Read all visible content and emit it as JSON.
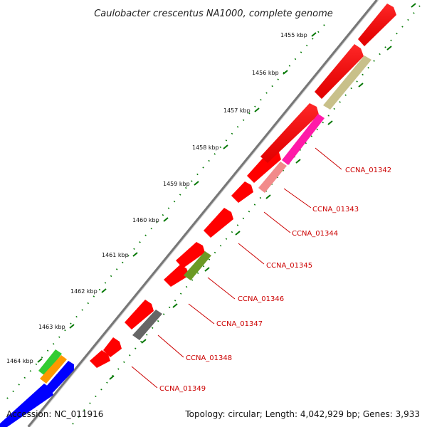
{
  "title": "Caulobacter crescentus NA1000, complete genome",
  "kbp_labels": [
    "1455 kbp",
    "1456 kbp",
    "1457 kbp",
    "1458 kbp",
    "1459 kbp",
    "1460 kbp",
    "1461 kbp",
    "1462 kbp",
    "1463 kbp",
    "1464 kbp"
  ],
  "gene_labels": [
    "CCNA_01342",
    "CCNA_01343",
    "CCNA_01344",
    "CCNA_01345",
    "CCNA_01346",
    "CCNA_01347",
    "CCNA_01348",
    "CCNA_01349"
  ],
  "footer": {
    "accession": "Accession: NC_011916",
    "topology": "Topology: circular; Length: 4,042,929 bp; Genes: 3,933"
  },
  "colors": {
    "forward_gene": "#ff0000",
    "reverse_gene": "#ff0000",
    "tick": "#007700",
    "backbone": "#777777",
    "label": "#cc0000",
    "leader": "#cc0000",
    "olive_feature": "#c8c08a",
    "magenta_feature": "#ff1aa8",
    "salmon_feature": "#f28a8a",
    "green_feature": "#6b9a24",
    "gray_feature": "#666666",
    "blue_feature": "#0000ff",
    "light_green_feature": "#33cc33",
    "orange_feature": "#ff9900"
  }
}
